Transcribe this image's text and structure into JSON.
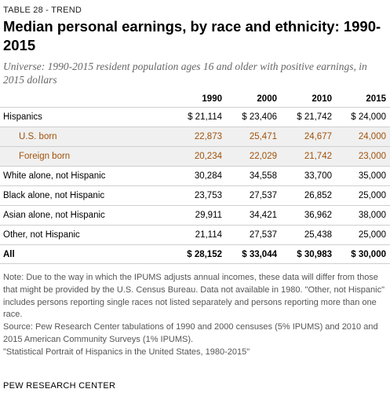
{
  "table_label": "TABLE 28 - TREND",
  "title": "Median personal earnings, by race and ethnicity: 1990-2015",
  "subtitle": "Universe: 1990-2015 resident population ages 16 and older with positive earnings, in 2015 dollars",
  "columns": [
    "1990",
    "2000",
    "2010",
    "2015"
  ],
  "rows": [
    {
      "label": "Hispanics",
      "values": [
        "$ 21,114",
        "$ 23,406",
        "$ 21,742",
        "$ 24,000"
      ]
    },
    {
      "label": "U.S. born",
      "values": [
        "22,873",
        "25,471",
        "24,677",
        "24,000"
      ]
    },
    {
      "label": "Foreign born",
      "values": [
        "20,234",
        "22,029",
        "21,742",
        "23,000"
      ]
    },
    {
      "label": "White alone, not Hispanic",
      "values": [
        "30,284",
        "34,558",
        "33,700",
        "35,000"
      ]
    },
    {
      "label": "Black alone, not Hispanic",
      "values": [
        "23,753",
        "27,537",
        "26,852",
        "25,000"
      ]
    },
    {
      "label": "Asian alone, not Hispanic",
      "values": [
        "29,911",
        "34,421",
        "36,962",
        "38,000"
      ]
    },
    {
      "label": "Other, not Hispanic",
      "values": [
        "21,114",
        "27,537",
        "25,438",
        "25,000"
      ]
    },
    {
      "label": "All",
      "values": [
        "$ 28,152",
        "$ 33,044",
        "$ 30,983",
        "$ 30,000"
      ]
    }
  ],
  "notes": {
    "note": "Note: Due to the way in which the IPUMS adjusts annual incomes, these data will differ from those that might be provided by the U.S. Census Bureau. Data not available in 1980. \"Other, not Hispanic\" includes persons reporting single races not listed separately and persons reporting more than one race.",
    "source": "Source: Pew Research Center tabulations of 1990 and 2000 censuses (5% IPUMS) and 2010 and 2015 American Community Surveys (1% IPUMS).",
    "report": "\"Statistical Portrait of Hispanics in the United States, 1980-2015\""
  },
  "footer": "PEW RESEARCH CENTER",
  "colors": {
    "subgroup_text": "#a0520c",
    "subgroup_bg": "#f0f0f0",
    "subtitle": "#666666",
    "notes": "#555555"
  }
}
